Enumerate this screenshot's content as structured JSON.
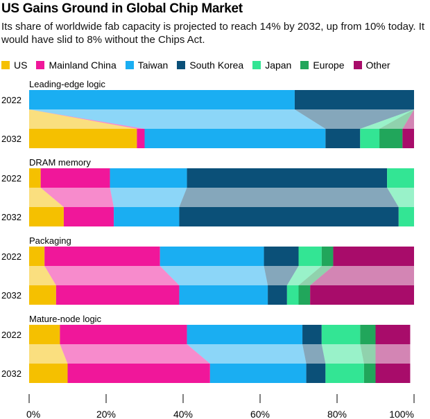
{
  "title": "US Gains Ground in Global Chip Market",
  "subtitle": "Its share of worldwide fab capacity is projected to reach 14% by 2032, up from 10% today. It would have slid to 8% without the Chips Act.",
  "legend": [
    {
      "name": "US",
      "color": "#F5C000"
    },
    {
      "name": "Mainland China",
      "color": "#F0179A"
    },
    {
      "name": "Taiwan",
      "color": "#1AAEF2"
    },
    {
      "name": "South Korea",
      "color": "#0B5078"
    },
    {
      "name": "Japan",
      "color": "#33E594"
    },
    {
      "name": "Europe",
      "color": "#21A65B"
    },
    {
      "name": "Other",
      "color": "#A80C6A"
    }
  ],
  "chart_data": {
    "type": "bar",
    "stacked": true,
    "orientation": "horizontal",
    "xlim": [
      0,
      100
    ],
    "x_ticks": [
      "0%",
      "20%",
      "40%",
      "60%",
      "80%",
      "100%"
    ],
    "row_labels": [
      "2022",
      "2032"
    ],
    "series_names": [
      "US",
      "Mainland China",
      "Taiwan",
      "South Korea",
      "Japan",
      "Europe",
      "Other"
    ],
    "groups": [
      {
        "label": "Leading-edge logic",
        "rows": [
          {
            "year": "2022",
            "values": [
              0,
              0,
              69,
              31,
              0,
              0,
              0
            ]
          },
          {
            "year": "2032",
            "values": [
              28,
              2,
              47,
              9,
              5,
              6,
              3
            ]
          }
        ]
      },
      {
        "label": "DRAM memory",
        "rows": [
          {
            "year": "2022",
            "values": [
              3,
              18,
              20,
              52,
              7,
              0,
              0
            ]
          },
          {
            "year": "2032",
            "values": [
              9,
              13,
              17,
              57,
              4,
              0,
              0
            ]
          }
        ]
      },
      {
        "label": "Packaging",
        "rows": [
          {
            "year": "2022",
            "values": [
              4,
              30,
              27,
              9,
              6,
              3,
              21
            ]
          },
          {
            "year": "2032",
            "values": [
              7,
              32,
              23,
              5,
              3,
              3,
              27
            ]
          }
        ]
      },
      {
        "label": "Mature-node logic",
        "rows": [
          {
            "year": "2022",
            "values": [
              8,
              33,
              30,
              5,
              10,
              4,
              9
            ]
          },
          {
            "year": "2032",
            "values": [
              10,
              37,
              25,
              5,
              10,
              3,
              9
            ]
          }
        ]
      }
    ]
  }
}
